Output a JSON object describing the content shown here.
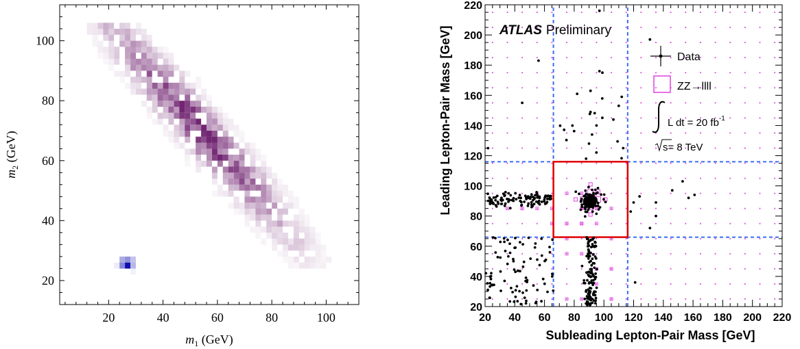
{
  "chart_data": [
    {
      "type": "heatmap",
      "xlabel_var": "m",
      "xlabel_sub": "1",
      "xlabel_unit": " (GeV)",
      "ylabel_var": "m",
      "ylabel_sub": "2",
      "ylabel_unit": " (GeV)",
      "xlim": [
        2,
        112
      ],
      "ylim": [
        12,
        112
      ],
      "xticks": [
        "20",
        "40",
        "60",
        "80",
        "100"
      ],
      "yticks": [
        "20",
        "40",
        "60",
        "80",
        "100"
      ],
      "bin_width": 2,
      "background_color": "#6a1a6a",
      "background_band": {
        "x_range": [
          8,
          104
        ],
        "y_lower": "2*x0-... approx",
        "intensity_max": 0.9
      },
      "signal_color": "#1010b0",
      "signal_cells": [
        {
          "x": 24,
          "y": 26,
          "v": 0.35
        },
        {
          "x": 26,
          "y": 26,
          "v": 0.45
        },
        {
          "x": 24,
          "y": 24,
          "v": 0.5
        },
        {
          "x": 26,
          "y": 24,
          "v": 1.0
        },
        {
          "x": 28,
          "y": 24,
          "v": 0.3
        },
        {
          "x": 28,
          "y": 26,
          "v": 0.25
        },
        {
          "x": 22,
          "y": 24,
          "v": 0.08
        },
        {
          "x": 28,
          "y": 22,
          "v": 0.06
        }
      ]
    },
    {
      "type": "scatter",
      "title_bold": "ATLAS",
      "title_rest": "Preliminary",
      "xlabel": "Subleading Lepton-Pair Mass [GeV]",
      "ylabel": "Leading Lepton-Pair Mass [GeV]",
      "xlim": [
        20,
        220
      ],
      "ylim": [
        20,
        220
      ],
      "xticks": [
        "20",
        "40",
        "60",
        "80",
        "100",
        "120",
        "140",
        "160",
        "180",
        "200",
        "220"
      ],
      "yticks": [
        "20",
        "40",
        "60",
        "80",
        "100",
        "120",
        "140",
        "160",
        "180",
        "200",
        "220"
      ],
      "legend": {
        "data_label": "Data",
        "zz_label": "ZZ→llll",
        "lumi_label": "L dt = 20 fb",
        "lumi_sup": "-1",
        "energy_label": "s= 8 TeV",
        "position": "top-right"
      },
      "signal_box": {
        "x": [
          66,
          116
        ],
        "y": [
          66,
          116
        ],
        "color": "#e00000"
      },
      "dashed_lines": {
        "x": [
          66,
          116
        ],
        "y": [
          66,
          116
        ],
        "color": "#3a6cf0"
      },
      "data_color": "#000000",
      "zz_color": "#e040e0",
      "isolated_points": [
        [
          97,
          216
        ],
        [
          131,
          197
        ],
        [
          56,
          183
        ],
        [
          97,
          176
        ],
        [
          99,
          175
        ],
        [
          91,
          163
        ],
        [
          112,
          159
        ],
        [
          45,
          155
        ],
        [
          82,
          161
        ],
        [
          91,
          149
        ],
        [
          95,
          140
        ],
        [
          92,
          134
        ],
        [
          113,
          125
        ],
        [
          22,
          125
        ],
        [
          90,
          128
        ],
        [
          88,
          118
        ],
        [
          153,
          103
        ],
        [
          161,
          94
        ],
        [
          157,
          92
        ],
        [
          146,
          97
        ],
        [
          135,
          89
        ],
        [
          124,
          93
        ],
        [
          120,
          89
        ],
        [
          118,
          83
        ],
        [
          135,
          80
        ],
        [
          131,
          72
        ],
        [
          121,
          36
        ]
      ]
    }
  ]
}
